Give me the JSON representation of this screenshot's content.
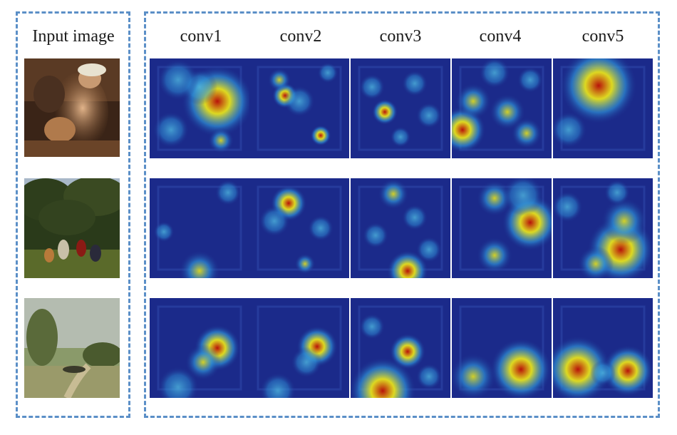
{
  "headers": {
    "input": "Input image",
    "layers": [
      "conv1",
      "conv2",
      "conv3",
      "conv4",
      "conv5"
    ]
  },
  "colors": {
    "dashed_border": "#5b8fc7",
    "heatmap_low": "#1b2a8a",
    "heatmap_mid": "#2e8fd6",
    "heatmap_high": "#e7e21c",
    "heatmap_peak": "#b8120a"
  },
  "rows": [
    {
      "input": "painting-mother-and-child",
      "maps": [
        "conv1",
        "conv2",
        "conv3",
        "conv4",
        "conv5"
      ]
    },
    {
      "input": "painting-trees-and-figures",
      "maps": [
        "conv1",
        "conv2",
        "conv3",
        "conv4",
        "conv5"
      ]
    },
    {
      "input": "painting-landscape-path",
      "maps": [
        "conv1",
        "conv2",
        "conv3",
        "conv4",
        "conv5"
      ]
    }
  ]
}
